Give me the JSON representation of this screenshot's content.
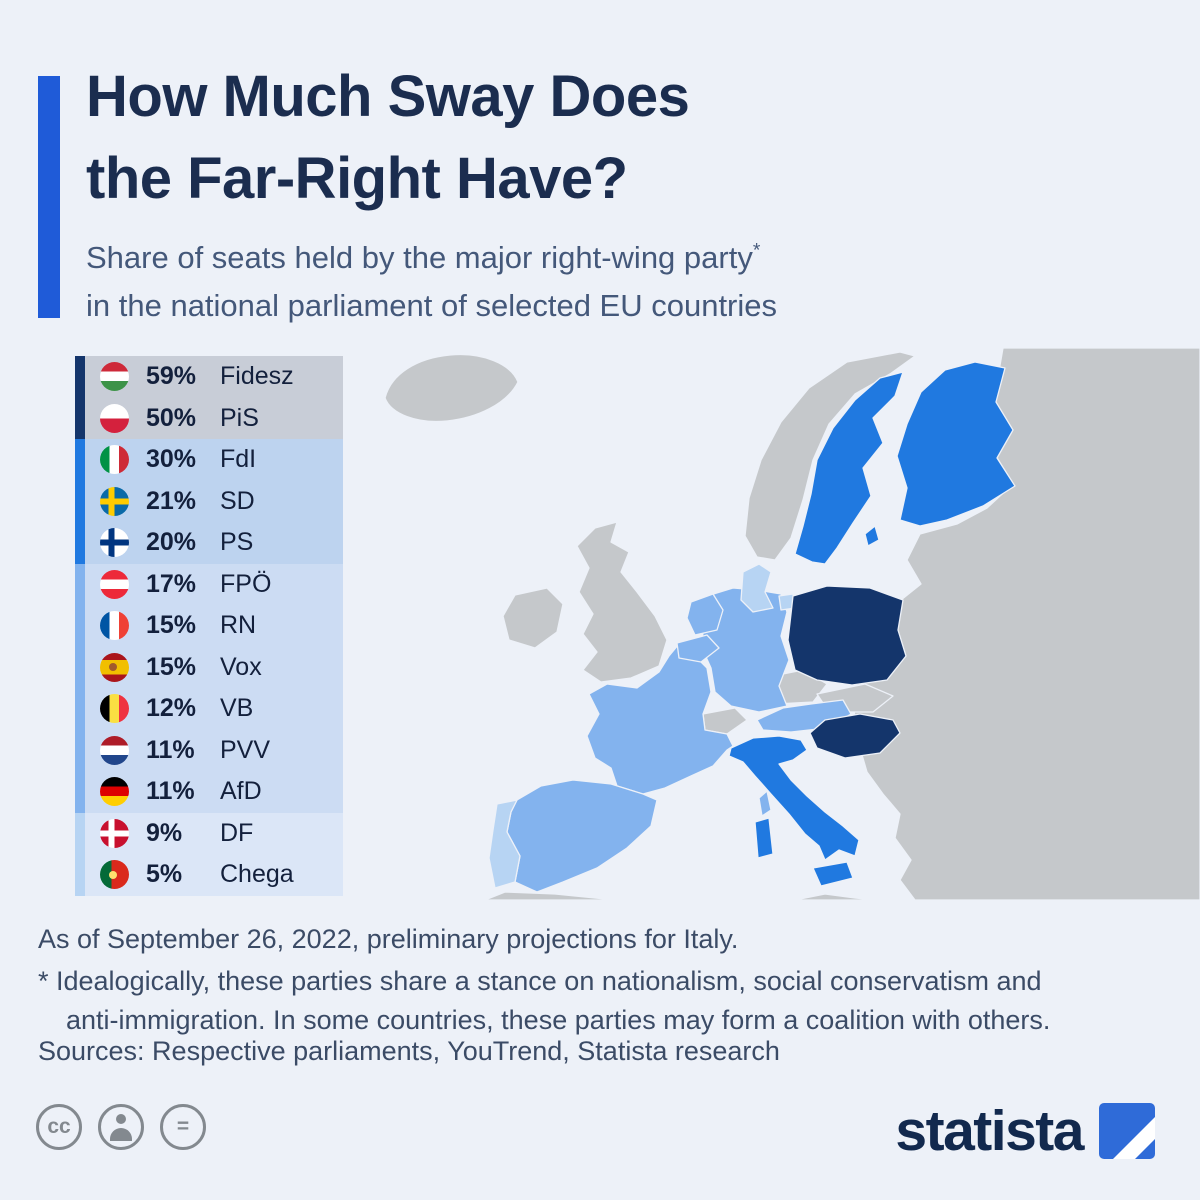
{
  "header": {
    "accent_color": "#1f5bd8",
    "title_lines": [
      "How Much Sway Does",
      "the Far-Right Have?"
    ],
    "subtitle_pre": "Share of seats held by the major right-wing party",
    "subtitle_star": "*",
    "subtitle_line2": "in the national parliament of selected EU countries"
  },
  "chart_data": {
    "type": "choropleth",
    "title": "Share of seats held by the major right-wing party in the national parliament of selected EU countries",
    "unit": "percent of national parliament seats",
    "entries": [
      {
        "country": "Hungary",
        "flag": "hungary-flag",
        "party": "Fidesz",
        "value": 59,
        "tier": 1
      },
      {
        "country": "Poland",
        "flag": "poland-flag",
        "party": "PiS",
        "value": 50,
        "tier": 1
      },
      {
        "country": "Italy",
        "flag": "italy-flag",
        "party": "FdI",
        "value": 30,
        "tier": 2
      },
      {
        "country": "Sweden",
        "flag": "sweden-flag",
        "party": "SD",
        "value": 21,
        "tier": 2
      },
      {
        "country": "Finland",
        "flag": "finland-flag",
        "party": "PS",
        "value": 20,
        "tier": 2
      },
      {
        "country": "Austria",
        "flag": "austria-flag",
        "party": "FPÖ",
        "value": 17,
        "tier": 3
      },
      {
        "country": "France",
        "flag": "france-flag",
        "party": "RN",
        "value": 15,
        "tier": 3
      },
      {
        "country": "Spain",
        "flag": "spain-flag",
        "party": "Vox",
        "value": 15,
        "tier": 3
      },
      {
        "country": "Belgium",
        "flag": "belgium-flag",
        "party": "VB",
        "value": 12,
        "tier": 3
      },
      {
        "country": "Netherlands",
        "flag": "netherlands-flag",
        "party": "PVV",
        "value": 11,
        "tier": 3
      },
      {
        "country": "Germany",
        "flag": "germany-flag",
        "party": "AfD",
        "value": 11,
        "tier": 3
      },
      {
        "country": "Denmark",
        "flag": "denmark-flag",
        "party": "DF",
        "value": 9,
        "tier": 4
      },
      {
        "country": "Portugal",
        "flag": "portugal-flag",
        "party": "Chega",
        "value": 5,
        "tier": 4
      }
    ],
    "tier_colors": [
      "#14356b",
      "#2079e0",
      "#83b3ee",
      "#b7d4f3"
    ],
    "tier_row_bg": [
      "#c8cdd7",
      "#bdd3ef",
      "#ccdcf3",
      "#dbe6f7"
    ],
    "non_eu_color": "#c5c8cb",
    "legend_value_suffix": "%"
  },
  "footer": {
    "note_date": "As of September 26, 2022, preliminary projections for Italy.",
    "note_star_line1": "* Idealogically, these parties share a stance on nationalism, social conservatism and",
    "note_star_line2": "anti-immigration. In some countries, these parties may form a coalition with others.",
    "sources": "Sources: Respective parliaments, YouTrend, Statista research"
  },
  "branding": {
    "logo_text": "statista",
    "logo_color": "#2f6bd8",
    "cc_label": "cc",
    "nd_symbol": "="
  }
}
